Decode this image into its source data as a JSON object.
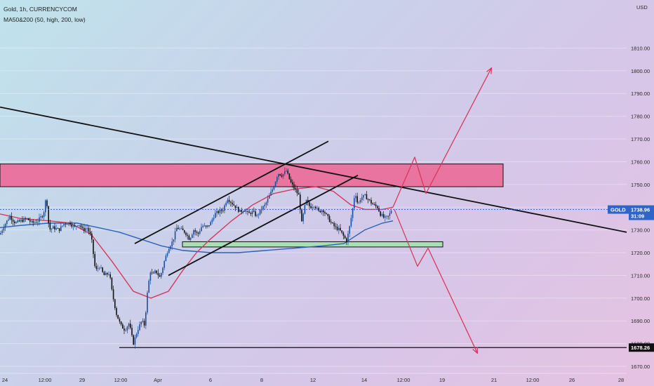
{
  "legend": {
    "title": "Gold, 1h, CURRENCYCOM",
    "indicator": "MA50&200 (50, high, 200, low)"
  },
  "colors": {
    "up_candle": "#1f4e9a",
    "down_candle": "#111111",
    "ma50": "#d6395f",
    "ma200": "#2d62b8",
    "resistance_zone": "#e8749f",
    "support_zone": "#a8e0b4",
    "projection": "#d6395f",
    "price_pill": "#2f64c8",
    "support_pill": "#111111"
  },
  "chart_data": {
    "type": "candlestick",
    "currency": "USD",
    "y_ticks": [
      1670,
      1680,
      1690,
      1700,
      1710,
      1720,
      1730,
      1740,
      1750,
      1760,
      1770,
      1780,
      1790,
      1800,
      1810
    ],
    "y_tick_labels": [
      "1670.00",
      "1680.00",
      "1690.00",
      "1700.00",
      "1710.00",
      "1720.00",
      "1730.00",
      "1740.00",
      "1750.00",
      "1760.00",
      "1770.00",
      "1780.00",
      "1790.00",
      "1800.00",
      "1810.00"
    ],
    "ylim": [
      1667,
      1822
    ],
    "x_tick_labels": [
      "24",
      "12:00",
      "29",
      "12:00",
      "Apr",
      "6",
      "8",
      "12",
      "14",
      "12:00",
      "19",
      "21",
      "12:00",
      "26",
      "28"
    ],
    "last_price": {
      "label": "GOLD",
      "price": "1738.96",
      "countdown": "31:09",
      "value": 1738.96
    },
    "support_level": {
      "price": "1678.26",
      "value": 1678.26
    },
    "resistance_zone": [
      1749,
      1759
    ],
    "support_zone": [
      1722.5,
      1724.8
    ],
    "price_path": [
      [
        0,
        1728
      ],
      [
        6,
        1732
      ],
      [
        14,
        1736
      ],
      [
        22,
        1733
      ],
      [
        30,
        1734
      ],
      [
        38,
        1735
      ],
      [
        46,
        1733
      ],
      [
        54,
        1734
      ],
      [
        62,
        1737
      ],
      [
        66,
        1745
      ],
      [
        70,
        1730
      ],
      [
        76,
        1731
      ],
      [
        84,
        1730
      ],
      [
        92,
        1733
      ],
      [
        100,
        1733
      ],
      [
        106,
        1731
      ],
      [
        112,
        1733
      ],
      [
        118,
        1730
      ],
      [
        124,
        1731
      ],
      [
        130,
        1727
      ],
      [
        136,
        1712
      ],
      [
        142,
        1714
      ],
      [
        148,
        1710
      ],
      [
        156,
        1711
      ],
      [
        160,
        1702
      ],
      [
        166,
        1693
      ],
      [
        172,
        1688
      ],
      [
        178,
        1686
      ],
      [
        184,
        1689
      ],
      [
        190,
        1680
      ],
      [
        196,
        1686
      ],
      [
        202,
        1690
      ],
      [
        206,
        1688
      ],
      [
        210,
        1702
      ],
      [
        214,
        1712
      ],
      [
        218,
        1710
      ],
      [
        222,
        1712
      ],
      [
        228,
        1709
      ],
      [
        234,
        1716
      ],
      [
        240,
        1722
      ],
      [
        246,
        1725
      ],
      [
        252,
        1731
      ],
      [
        258,
        1730
      ],
      [
        264,
        1729
      ],
      [
        270,
        1726
      ],
      [
        276,
        1730
      ],
      [
        282,
        1728
      ],
      [
        288,
        1732
      ],
      [
        294,
        1731
      ],
      [
        300,
        1733
      ],
      [
        306,
        1737
      ],
      [
        312,
        1738
      ],
      [
        318,
        1739
      ],
      [
        324,
        1744
      ],
      [
        330,
        1742
      ],
      [
        336,
        1740
      ],
      [
        342,
        1738
      ],
      [
        348,
        1739
      ],
      [
        354,
        1737
      ],
      [
        360,
        1738
      ],
      [
        366,
        1736
      ],
      [
        372,
        1739
      ],
      [
        378,
        1741
      ],
      [
        384,
        1745
      ],
      [
        390,
        1749
      ],
      [
        396,
        1755
      ],
      [
        402,
        1754
      ],
      [
        408,
        1756
      ],
      [
        414,
        1751
      ],
      [
        420,
        1748
      ],
      [
        426,
        1745
      ],
      [
        430,
        1733
      ],
      [
        436,
        1743
      ],
      [
        442,
        1740
      ],
      [
        448,
        1741
      ],
      [
        454,
        1738
      ],
      [
        460,
        1739
      ],
      [
        466,
        1736
      ],
      [
        472,
        1733
      ],
      [
        478,
        1731
      ],
      [
        484,
        1730
      ],
      [
        490,
        1727
      ],
      [
        494,
        1725
      ],
      [
        498,
        1731
      ],
      [
        502,
        1738
      ],
      [
        506,
        1747
      ],
      [
        510,
        1741
      ],
      [
        514,
        1744
      ],
      [
        520,
        1745
      ],
      [
        526,
        1743
      ],
      [
        532,
        1741
      ],
      [
        538,
        1740
      ],
      [
        542,
        1737
      ],
      [
        548,
        1735
      ],
      [
        554,
        1736
      ],
      [
        558,
        1738.96
      ]
    ],
    "ma50": [
      [
        0,
        1737
      ],
      [
        30,
        1735
      ],
      [
        70,
        1734
      ],
      [
        100,
        1733
      ],
      [
        130,
        1728
      ],
      [
        160,
        1716
      ],
      [
        190,
        1703
      ],
      [
        215,
        1700
      ],
      [
        240,
        1703
      ],
      [
        260,
        1712
      ],
      [
        280,
        1720
      ],
      [
        300,
        1726
      ],
      [
        330,
        1734
      ],
      [
        360,
        1741
      ],
      [
        390,
        1746
      ],
      [
        420,
        1748
      ],
      [
        450,
        1749
      ],
      [
        475,
        1747
      ],
      [
        500,
        1741
      ],
      [
        520,
        1739
      ],
      [
        545,
        1739
      ],
      [
        560,
        1740
      ]
    ],
    "ma200": [
      [
        0,
        1731
      ],
      [
        30,
        1732
      ],
      [
        70,
        1733
      ],
      [
        110,
        1733
      ],
      [
        140,
        1731
      ],
      [
        170,
        1729
      ],
      [
        200,
        1726
      ],
      [
        230,
        1723
      ],
      [
        260,
        1721
      ],
      [
        300,
        1720
      ],
      [
        340,
        1720
      ],
      [
        380,
        1721
      ],
      [
        420,
        1722
      ],
      [
        460,
        1723
      ],
      [
        490,
        1724
      ],
      [
        520,
        1730
      ],
      [
        545,
        1733
      ],
      [
        560,
        1734
      ]
    ],
    "downtrend_line": [
      [
        0,
        1784
      ],
      [
        893,
        1729
      ]
    ],
    "channel_upper": [
      [
        192,
        1724
      ],
      [
        468,
        1769
      ]
    ],
    "channel_lower": [
      [
        240,
        1710
      ],
      [
        510,
        1754
      ]
    ],
    "bullish_projection": [
      [
        560,
        1740
      ],
      [
        591,
        1762
      ],
      [
        607,
        1746
      ],
      [
        700,
        1801
      ]
    ],
    "bearish_projection": [
      [
        562,
        1739
      ],
      [
        595,
        1714
      ],
      [
        610,
        1722
      ],
      [
        680,
        1676
      ]
    ]
  }
}
